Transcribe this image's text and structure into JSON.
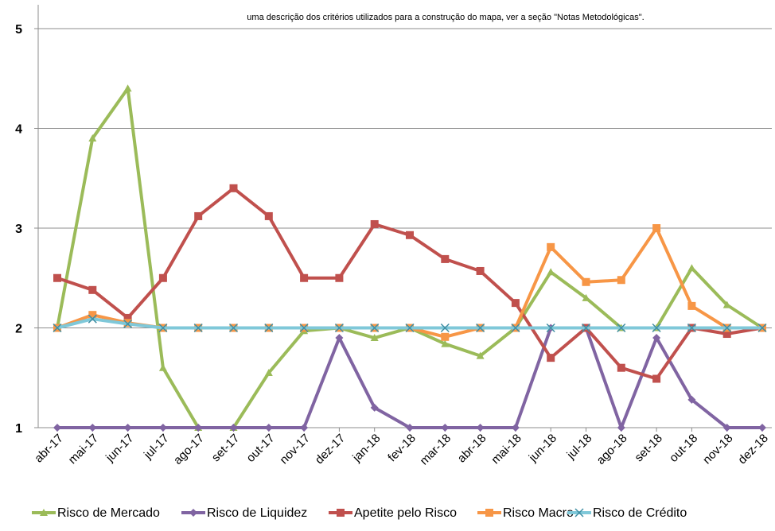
{
  "note": "uma descrição dos critérios utilizados para a construção do mapa, ver a seção \"Notas Metodológicas\".",
  "chart_data": {
    "type": "line",
    "title": "",
    "xlabel": "",
    "ylabel": "",
    "ylim": [
      1,
      5
    ],
    "yticks": [
      "1",
      "2",
      "3",
      "4",
      "5"
    ],
    "grid": true,
    "legend_position": "bottom",
    "categories": [
      "abr-17",
      "mai-17",
      "jun-17",
      "jul-17",
      "ago-17",
      "set-17",
      "out-17",
      "nov-17",
      "dez-17",
      "jan-18",
      "fev-18",
      "mar-18",
      "abr-18",
      "mai-18",
      "jun-18",
      "jul-18",
      "ago-18",
      "set-18",
      "out-18",
      "nov-18",
      "dez-18"
    ],
    "series": [
      {
        "name": "Risco de Mercado",
        "color": "#9BBB59",
        "marker": "triangle",
        "values": [
          2.0,
          3.9,
          4.4,
          1.6,
          1.0,
          1.0,
          1.55,
          1.97,
          2.0,
          1.9,
          2.0,
          1.84,
          1.72,
          2.0,
          2.56,
          2.3,
          2.0,
          2.0,
          2.6,
          2.23,
          2.0
        ]
      },
      {
        "name": "Risco de Liquidez",
        "color": "#8064A2",
        "marker": "diamond",
        "values": [
          1.0,
          1.0,
          1.0,
          1.0,
          1.0,
          1.0,
          1.0,
          1.0,
          1.9,
          1.2,
          1.0,
          1.0,
          1.0,
          1.0,
          2.0,
          2.0,
          1.0,
          1.9,
          1.28,
          1.0,
          1.0
        ]
      },
      {
        "name": "Apetite pelo Risco",
        "color": "#C0504D",
        "marker": "square",
        "values": [
          2.5,
          2.38,
          2.1,
          2.5,
          3.12,
          3.4,
          3.12,
          2.5,
          2.5,
          3.04,
          2.93,
          2.69,
          2.57,
          2.25,
          1.7,
          2.0,
          1.6,
          1.49,
          2.0,
          1.94,
          2.0
        ]
      },
      {
        "name": "Risco Macro",
        "color": "#F79646",
        "marker": "square",
        "values": [
          2.0,
          2.13,
          2.05,
          2.0,
          2.0,
          2.0,
          2.0,
          2.0,
          2.0,
          2.0,
          2.0,
          1.91,
          2.0,
          2.0,
          2.81,
          2.46,
          2.48,
          3.0,
          2.22,
          2.0,
          2.0
        ]
      },
      {
        "name": "Risco de Crédito",
        "color": "#7FC8D9",
        "marker": "x",
        "values": [
          2.0,
          2.09,
          2.04,
          2.0,
          2.0,
          2.0,
          2.0,
          2.0,
          2.0,
          2.0,
          2.0,
          2.0,
          2.0,
          2.0,
          2.0,
          2.0,
          2.0,
          2.0,
          2.0,
          2.0,
          2.0
        ]
      }
    ]
  }
}
